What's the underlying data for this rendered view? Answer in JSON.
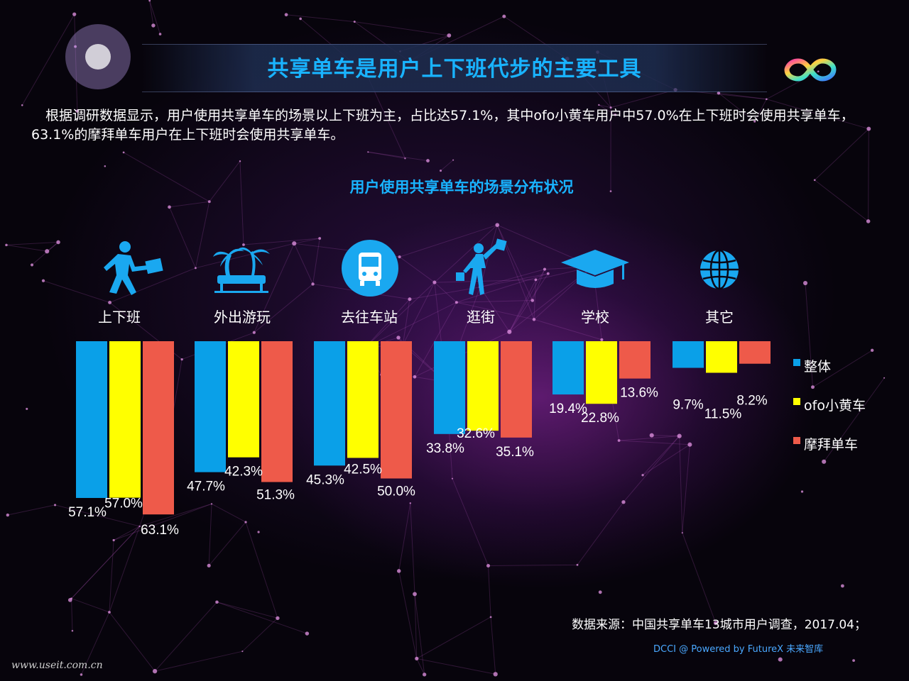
{
  "page": {
    "title": "共享单车是用户上下班代步的主要工具",
    "intro": "根据调研数据显示，用户使用共享单车的场景以上下班为主，占比达57.1%，其中ofo小黄车用户中57.0%在上下班时会使用共享单车，63.1%的摩拜单车用户在上下班时会使用共享单车。",
    "source": "数据来源：中国共享单车13城市用户调查，2017.04；",
    "credit": "DCCI @ Powered by FutureX 未来智库",
    "watermark": "www.useit.com.cn"
  },
  "icons": [
    "commuter-icon",
    "palm-tree-icon",
    "bus-icon",
    "shopping-icon",
    "graduation-cap-icon",
    "globe-icon"
  ],
  "colors": {
    "series": [
      "#0aa0e8",
      "#ffff00",
      "#ee5a4a"
    ],
    "accent": "#19b3ff"
  },
  "chart_data": {
    "type": "bar",
    "title": "用户使用共享单车的场景分布状况",
    "categories": [
      "上下班",
      "外出游玩",
      "去往车站",
      "逛街",
      "学校",
      "其它"
    ],
    "series": [
      {
        "name": "整体",
        "values": [
          57.1,
          47.7,
          45.3,
          33.8,
          19.4,
          9.7
        ]
      },
      {
        "name": "ofo小黄车",
        "values": [
          57.0,
          42.3,
          42.5,
          32.6,
          22.8,
          11.5
        ]
      },
      {
        "name": "摩拜单车",
        "values": [
          63.1,
          51.3,
          50.0,
          35.1,
          13.6,
          8.2
        ]
      }
    ],
    "value_labels": [
      [
        "57.1%",
        "47.7%",
        "45.3%",
        "33.8%",
        "19.4%",
        "9.7%"
      ],
      [
        "57.0%",
        "42.3%",
        "42.5%",
        "32.6%",
        "22.8%",
        "11.5%"
      ],
      [
        "63.1%",
        "51.3%",
        "50.0%",
        "35.1%",
        "13.6%",
        "8.2%"
      ]
    ],
    "orientation": "bars hang downward from a common baseline",
    "unit": "%",
    "legend_position": "right"
  }
}
